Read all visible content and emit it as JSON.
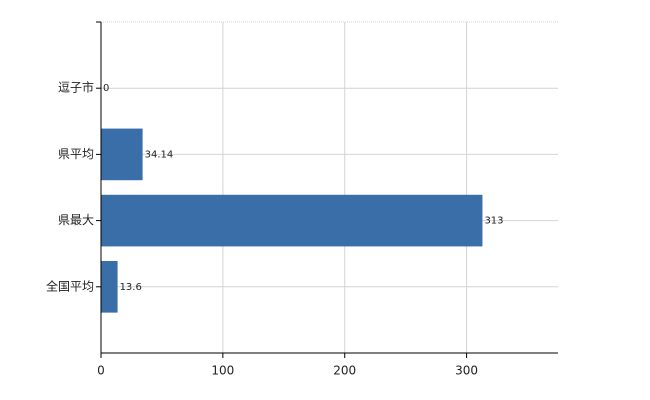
{
  "chart_data": {
    "type": "hbar",
    "categories": [
      "逗子市",
      "県平均",
      "県最大",
      "全国平均"
    ],
    "values": [
      0,
      34.14,
      313,
      13.6
    ],
    "color": "#3a6ea8",
    "xlim": [
      0,
      375
    ],
    "xticks": [
      0,
      100,
      200,
      300
    ],
    "grid": true
  }
}
